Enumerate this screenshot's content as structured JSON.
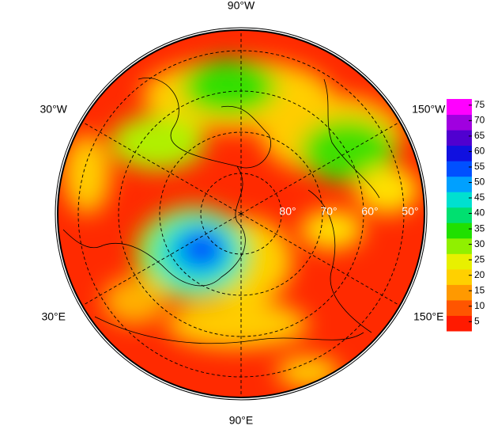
{
  "map": {
    "lon_labels": [
      "90°W",
      "30°W",
      "150°W",
      "30°E",
      "150°E",
      "90°E"
    ],
    "lat_labels": [
      "80°",
      "70°",
      "60°",
      "50°"
    ],
    "colorbar": {
      "range": [
        2,
        77
      ],
      "ticks": [
        5,
        10,
        15,
        20,
        25,
        30,
        35,
        40,
        45,
        50,
        55,
        60,
        65,
        70,
        75
      ],
      "colors": [
        "#ff1a00",
        "#ff5500",
        "#ff9900",
        "#ffd000",
        "#e8f000",
        "#90f000",
        "#20e000",
        "#00e070",
        "#00e0d0",
        "#00a0ff",
        "#0050ff",
        "#1010e0",
        "#5000d0",
        "#a000e0",
        "#ff00ff"
      ]
    }
  }
}
